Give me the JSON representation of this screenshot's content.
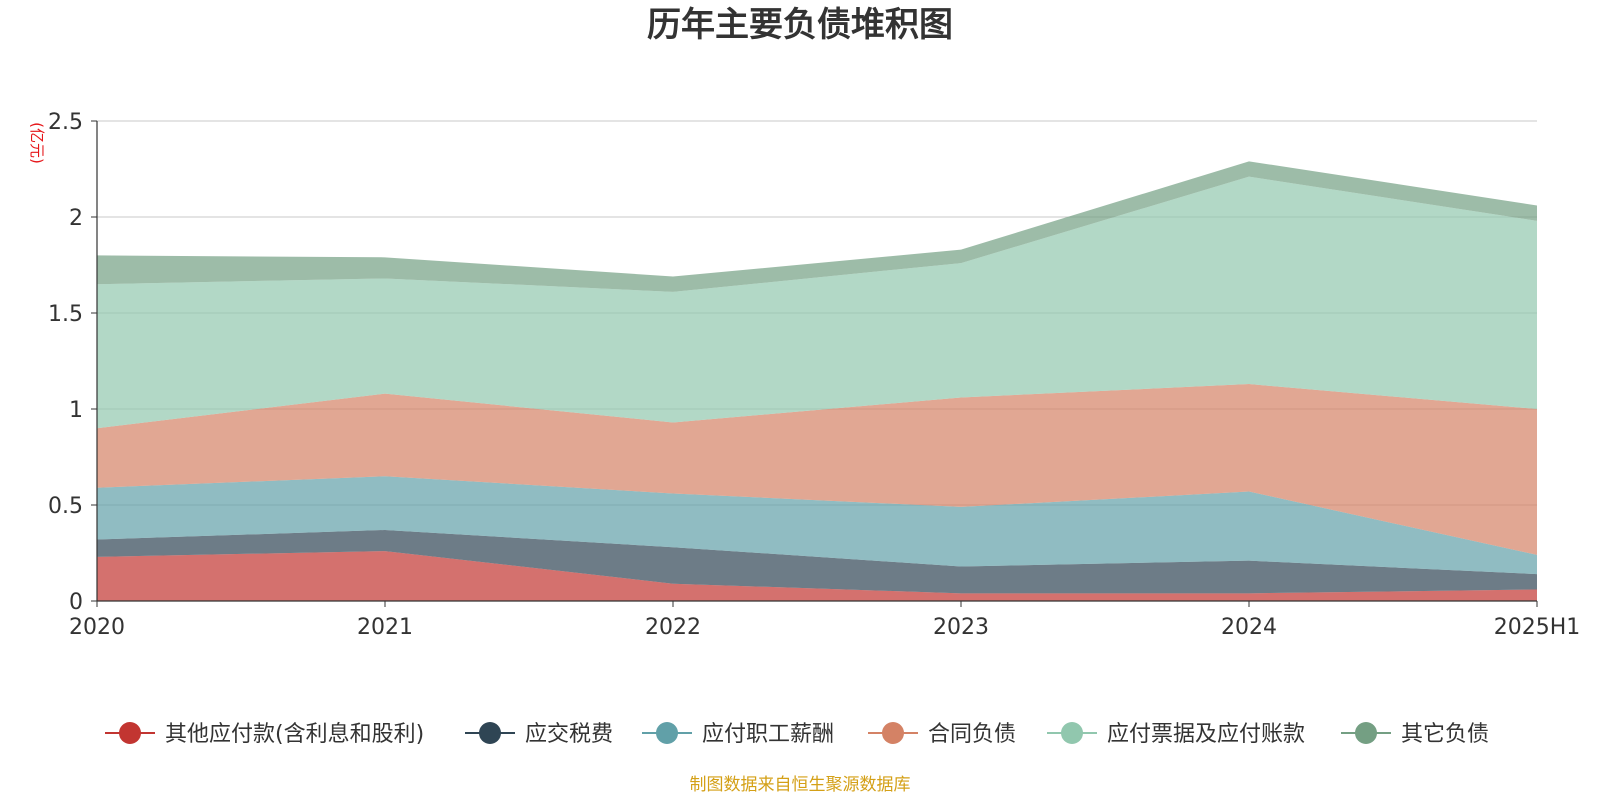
{
  "chart_data": {
    "type": "area",
    "title": "历年主要负债堆积图",
    "unit_label": "(亿元)",
    "categories": [
      "2020",
      "2021",
      "2022",
      "2023",
      "2024",
      "2025H1"
    ],
    "ylim": [
      0,
      2.5
    ],
    "yticks": [
      "0",
      "0.5",
      "1",
      "1.5",
      "2",
      "2.5"
    ],
    "stacked": true,
    "grid": true,
    "legend_position": "bottom",
    "series": [
      {
        "name": "其他应付款(含利息和股利)",
        "color": "#c23531",
        "values": [
          0.23,
          0.26,
          0.09,
          0.04,
          0.04,
          0.06
        ]
      },
      {
        "name": "应交税费",
        "color": "#2f4554",
        "values": [
          0.09,
          0.11,
          0.19,
          0.14,
          0.17,
          0.08
        ]
      },
      {
        "name": "应付职工薪酬",
        "color": "#61a0a8",
        "values": [
          0.27,
          0.28,
          0.28,
          0.31,
          0.36,
          0.1
        ]
      },
      {
        "name": "合同负债",
        "color": "#d48265",
        "values": [
          0.31,
          0.43,
          0.37,
          0.57,
          0.56,
          0.76
        ]
      },
      {
        "name": "应付票据及应付账款",
        "color": "#91c7ae",
        "values": [
          0.75,
          0.6,
          0.68,
          0.7,
          1.08,
          0.98
        ]
      },
      {
        "name": "其它负债",
        "color": "#749f83",
        "values": [
          0.15,
          0.11,
          0.08,
          0.07,
          0.08,
          0.08
        ]
      }
    ]
  },
  "footer": {
    "source": "制图数据来自恒生聚源数据库"
  }
}
